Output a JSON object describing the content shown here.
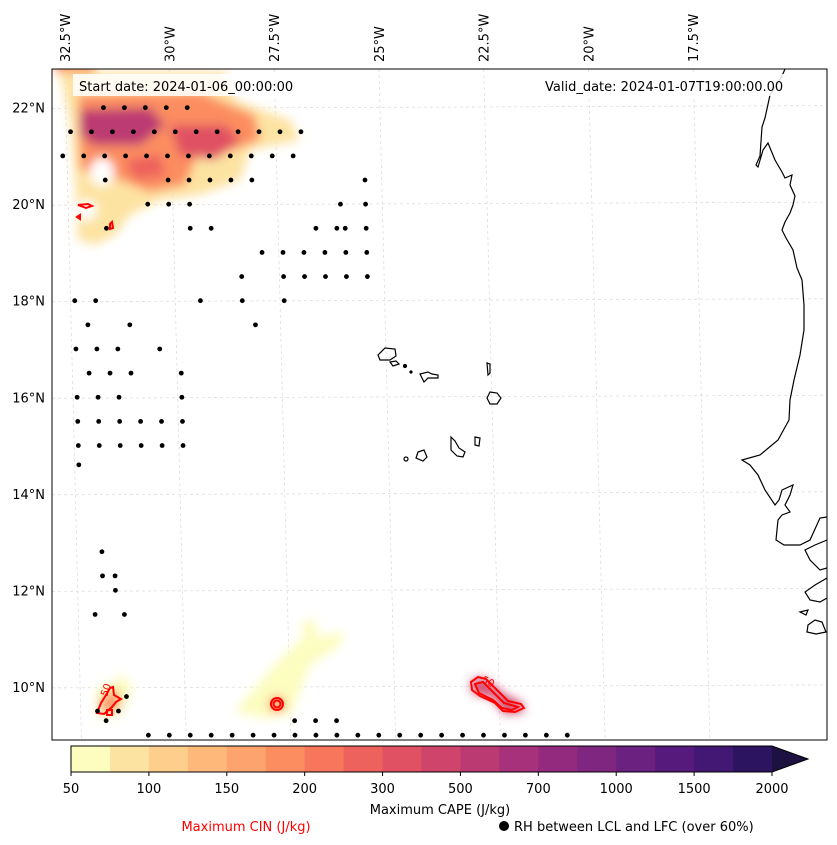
{
  "chart_data": {
    "type": "heatmap",
    "title_left": "Start date: 2024-01-06_00:00:00",
    "title_right": "Valid_date: 2024-01-07T19:00:00.00",
    "map": {
      "lon_range": [
        -33.0,
        -14.5
      ],
      "lat_range": [
        8.9,
        22.8
      ],
      "lon_ticks": [
        {
          "value": -32.5,
          "label": "32.5°W"
        },
        {
          "value": -30.0,
          "label": "30°W"
        },
        {
          "value": -27.5,
          "label": "27.5°W"
        },
        {
          "value": -25.0,
          "label": "25°W"
        },
        {
          "value": -22.5,
          "label": "22.5°W"
        },
        {
          "value": -20.0,
          "label": "20°W"
        },
        {
          "value": -17.5,
          "label": "17.5°W"
        }
      ],
      "lat_ticks": [
        {
          "value": 22,
          "label": "22°N"
        },
        {
          "value": 20,
          "label": "20°N"
        },
        {
          "value": 18,
          "label": "18°N"
        },
        {
          "value": 16,
          "label": "16°N"
        },
        {
          "value": 14,
          "label": "14°N"
        },
        {
          "value": 12,
          "label": "12°N"
        },
        {
          "value": 10,
          "label": "10°N"
        }
      ],
      "gridlines": true
    },
    "colorbar": {
      "label": "Maximum CAPE (J/kg)",
      "levels": [
        50,
        75,
        100,
        125,
        150,
        175,
        200,
        250,
        300,
        400,
        500,
        600,
        700,
        850,
        1000,
        1250,
        1500,
        1750,
        2000
      ],
      "tick_labels": [
        "50",
        "100",
        "150",
        "200",
        "300",
        "500",
        "700",
        "1000",
        "1500",
        "2000"
      ],
      "colors": [
        "#fcfdbf",
        "#fde3a2",
        "#fece8c",
        "#feb97a",
        "#fda46e",
        "#fc8d61",
        "#f7765c",
        "#ee625d",
        "#e05164",
        "#cf446a",
        "#bc3a72",
        "#a7317a",
        "#932a7e",
        "#7f2680",
        "#6b2180",
        "#561a7c",
        "#421874",
        "#2d1460",
        "#1c1140"
      ],
      "extend": "max"
    },
    "legend": {
      "cin_label": "Maximum CIN (J/kg)",
      "cin_color": "#ff0000",
      "rh_label": "RH between LCL and LFC (over 60%)",
      "rh_marker": "●"
    },
    "cin_contours": [
      {
        "label": "50",
        "lon": -32.2,
        "lat": 9.6
      },
      {
        "label": "",
        "lon": -28.3,
        "lat": 9.6
      },
      {
        "label": "50",
        "lon": -22.8,
        "lat": 9.9
      },
      {
        "label": "",
        "lon": -32.6,
        "lat": 19.9
      },
      {
        "label": "",
        "lon": -32.6,
        "lat": 19.6
      },
      {
        "label": "",
        "lon": -31.9,
        "lat": 19.5
      }
    ],
    "cape_regions": [
      {
        "name": "northwest-cluster",
        "lon_range": [
          -32.5,
          -28.0
        ],
        "lat_range": [
          19.3,
          22.8
        ],
        "max_cape": 700
      },
      {
        "name": "southwest-patch",
        "lon_range": [
          -32.3,
          -31.6
        ],
        "lat_range": [
          9.4,
          10.2
        ],
        "max_cape": 200
      },
      {
        "name": "central-south-band",
        "lon_range": [
          -29.0,
          -26.0
        ],
        "lat_range": [
          9.3,
          11.2
        ],
        "max_cape": 150
      },
      {
        "name": "east-south-patch",
        "lon_range": [
          -23.3,
          -22.2
        ],
        "lat_range": [
          9.5,
          10.1
        ],
        "max_cape": 400
      }
    ],
    "rh_points_rows": [
      {
        "lat": 22.0,
        "lons": [
          -31.6,
          -31.1,
          -30.6,
          -30.1,
          -29.6
        ]
      },
      {
        "lat": 21.5,
        "lons": [
          -32.4,
          -31.9,
          -31.4,
          -30.9,
          -30.4,
          -29.9,
          -29.4,
          -28.9,
          -28.4,
          -27.9,
          -27.4,
          -26.9
        ]
      },
      {
        "lat": 21.0,
        "lons": [
          -32.6,
          -32.1,
          -31.6,
          -31.1,
          -30.6,
          -30.1,
          -29.6,
          -29.1,
          -28.6,
          -28.1,
          -27.6,
          -27.1
        ]
      },
      {
        "lat": 20.5,
        "lons": [
          -31.6,
          -30.1,
          -29.6,
          -29.1,
          -28.6,
          -28.1,
          -25.4
        ]
      },
      {
        "lat": 20.0,
        "lons": [
          -30.6,
          -30.1,
          -29.6,
          -26.0,
          -25.4
        ]
      },
      {
        "lat": 19.5,
        "lons": [
          -31.6,
          -29.6,
          -29.1,
          -26.6,
          -26.1,
          -25.9,
          -25.4
        ]
      },
      {
        "lat": 19.0,
        "lons": [
          -27.9,
          -27.4,
          -26.9,
          -26.4,
          -25.9,
          -25.4
        ]
      },
      {
        "lat": 18.5,
        "lons": [
          -28.4,
          -27.4,
          -26.9,
          -26.4,
          -25.9,
          -25.4
        ]
      },
      {
        "lat": 18.0,
        "lons": [
          -32.4,
          -31.9,
          -29.4,
          -28.4,
          -27.4
        ]
      },
      {
        "lat": 17.5,
        "lons": [
          -32.1,
          -31.1,
          -28.1
        ]
      },
      {
        "lat": 17.0,
        "lons": [
          -32.4,
          -31.9,
          -31.4,
          -30.4
        ]
      },
      {
        "lat": 16.5,
        "lons": [
          -32.1,
          -31.6,
          -31.1,
          -29.9
        ]
      },
      {
        "lat": 16.0,
        "lons": [
          -32.4,
          -31.9,
          -31.4,
          -29.9
        ]
      },
      {
        "lat": 15.5,
        "lons": [
          -32.4,
          -31.9,
          -31.4,
          -30.9,
          -30.4,
          -29.9
        ]
      },
      {
        "lat": 15.0,
        "lons": [
          -32.4,
          -31.9,
          -31.4,
          -30.9,
          -30.4,
          -29.9
        ]
      },
      {
        "lat": 14.6,
        "lons": [
          -32.4
        ]
      },
      {
        "lat": 12.8,
        "lons": [
          -31.9
        ]
      },
      {
        "lat": 12.3,
        "lons": [
          -31.9,
          -31.6
        ]
      },
      {
        "lat": 12.0,
        "lons": [
          -31.6
        ]
      },
      {
        "lat": 11.5,
        "lons": [
          -32.1,
          -31.4
        ]
      },
      {
        "lat": 9.8,
        "lons": [
          -31.4
        ]
      },
      {
        "lat": 9.5,
        "lons": [
          -32.1,
          -31.6
        ]
      },
      {
        "lat": 9.3,
        "lons": [
          -31.9,
          -27.4,
          -26.9,
          -26.4
        ]
      },
      {
        "lat": 9.0,
        "lons": [
          -30.9,
          -30.4,
          -29.9,
          -29.4,
          -28.9,
          -28.4,
          -27.9,
          -27.4,
          -26.9,
          -26.4,
          -25.9,
          -25.4,
          -24.9,
          -24.4,
          -23.9,
          -23.4,
          -22.9,
          -22.4,
          -21.9,
          -21.4,
          -20.9
        ]
      }
    ]
  }
}
